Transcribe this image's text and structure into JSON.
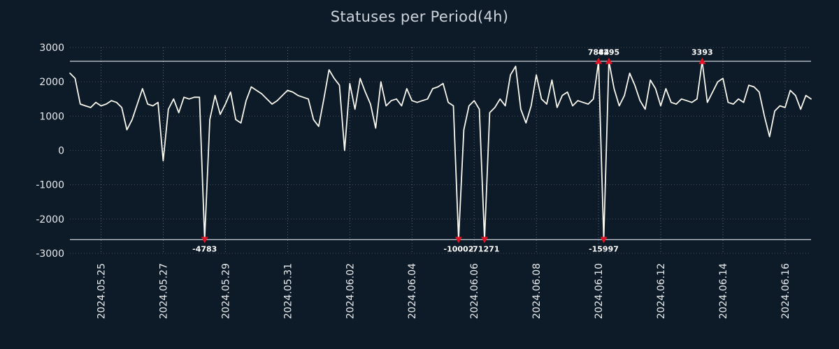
{
  "colors": {
    "background": "#0d1a28",
    "line": "#f8f7ee",
    "marker": "#e01424",
    "text": "#e8ebee",
    "grid": "#ffffff",
    "clip_line": "#dfe4ea",
    "annotation_text": "#ffffff"
  },
  "chart_data": {
    "type": "line",
    "title": "Statuses per Period(4h)",
    "xlabel": "",
    "ylabel": "",
    "ylim": [
      -3000,
      3000
    ],
    "yticks": [
      3000,
      2000,
      1000,
      0,
      -1000,
      -2000,
      -3000
    ],
    "grid": true,
    "legend": false,
    "period_hours": 4,
    "clip_value": 2600,
    "x_ticks": [
      {
        "label": "2024.05.25",
        "index": 6
      },
      {
        "label": "2024.05.27",
        "index": 18
      },
      {
        "label": "2024.05.29",
        "index": 30
      },
      {
        "label": "2024.05.31",
        "index": 42
      },
      {
        "label": "2024.06.02",
        "index": 54
      },
      {
        "label": "2024.06.04",
        "index": 66
      },
      {
        "label": "2024.06.06",
        "index": 78
      },
      {
        "label": "2024.06.08",
        "index": 90
      },
      {
        "label": "2024.06.10",
        "index": 102
      },
      {
        "label": "2024.06.12",
        "index": 114
      },
      {
        "label": "2024.06.14",
        "index": 126
      },
      {
        "label": "2024.06.16",
        "index": 138
      }
    ],
    "values": [
      2250,
      2100,
      1350,
      1300,
      1250,
      1400,
      1300,
      1350,
      1450,
      1400,
      1250,
      600,
      900,
      1350,
      1800,
      1350,
      1300,
      1400,
      -300,
      1200,
      1500,
      1100,
      1550,
      1500,
      1550,
      1550,
      -4783,
      900,
      1600,
      1050,
      1350,
      1700,
      900,
      800,
      1450,
      1850,
      1750,
      1650,
      1500,
      1350,
      1450,
      1600,
      1750,
      1700,
      1600,
      1550,
      1500,
      900,
      700,
      1500,
      2350,
      2100,
      1900,
      0,
      1950,
      1200,
      2100,
      1700,
      1350,
      650,
      2000,
      1300,
      1450,
      1500,
      1300,
      1800,
      1450,
      1400,
      1450,
      1500,
      1800,
      1850,
      1950,
      1400,
      1300,
      -10002,
      600,
      1300,
      1450,
      1200,
      -71271,
      1100,
      1250,
      1500,
      1300,
      2200,
      2450,
      1200,
      800,
      1300,
      2200,
      1500,
      1350,
      2050,
      1250,
      1600,
      1700,
      1300,
      1450,
      1400,
      1350,
      1500,
      7884,
      -15997,
      4295,
      1800,
      1300,
      1600,
      2250,
      1900,
      1450,
      1200,
      2050,
      1800,
      1300,
      1800,
      1400,
      1350,
      1500,
      1450,
      1400,
      1500,
      3393,
      1400,
      1700,
      2000,
      2100,
      1400,
      1350,
      1500,
      1400,
      1900,
      1850,
      1700,
      1000,
      400,
      1150,
      1300,
      1250,
      1750,
      1600,
      1200,
      1600,
      1500
    ],
    "annotations": [
      {
        "index": 26,
        "value": -4783,
        "label": "-4783",
        "side": "bottom"
      },
      {
        "index": 75,
        "value": -10002,
        "label": "-10002",
        "side": "bottom"
      },
      {
        "index": 80,
        "value": -71271,
        "label": "-71271",
        "side": "bottom"
      },
      {
        "index": 102,
        "value": 7884,
        "label": "7884",
        "side": "top"
      },
      {
        "index": 103,
        "value": -15997,
        "label": "-15997",
        "side": "bottom"
      },
      {
        "index": 104,
        "value": 4295,
        "label": "4295",
        "side": "top"
      },
      {
        "index": 122,
        "value": 3393,
        "label": "3393",
        "side": "top"
      }
    ]
  }
}
